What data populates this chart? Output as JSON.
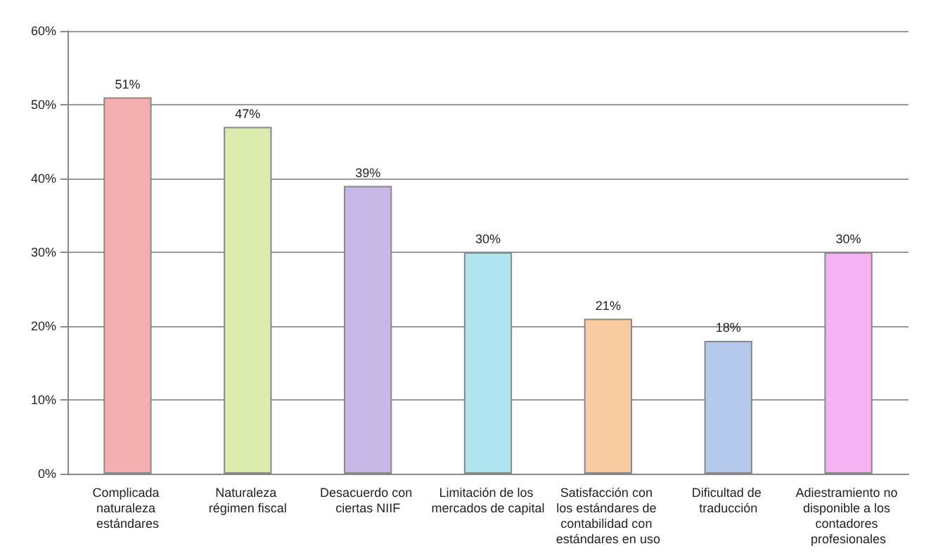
{
  "chart_data": {
    "type": "bar",
    "categories": [
      "Complicada naturaleza estándares",
      "Naturaleza régimen fiscal",
      "Desacuerdo con ciertas NIIF",
      "Limitación de los mercados de capital",
      "Satisfacción con los estándares de contabilidad con estándares en uso",
      "Dificultad de traducción",
      "Adiestramiento no disponible a los contadores profesionales"
    ],
    "values": [
      51,
      47,
      39,
      30,
      21,
      18,
      30
    ],
    "colors": [
      "#f4b0b0",
      "#dcecb0",
      "#c8b8e8",
      "#b0e4ee",
      "#f8cca0",
      "#b4c8ec",
      "#f4b4f4"
    ],
    "value_labels": [
      "51%",
      "47%",
      "39%",
      "30%",
      "21%",
      "18%",
      "30%"
    ],
    "ylim": [
      0,
      60
    ],
    "yticks": [
      {
        "value": 0,
        "label": "0%"
      },
      {
        "value": 10,
        "label": "10%"
      },
      {
        "value": 20,
        "label": "20%"
      },
      {
        "value": 30,
        "label": "30%"
      },
      {
        "value": 40,
        "label": "40%"
      },
      {
        "value": 50,
        "label": "50%"
      },
      {
        "value": 60,
        "label": "60%"
      }
    ],
    "grid": "y"
  }
}
